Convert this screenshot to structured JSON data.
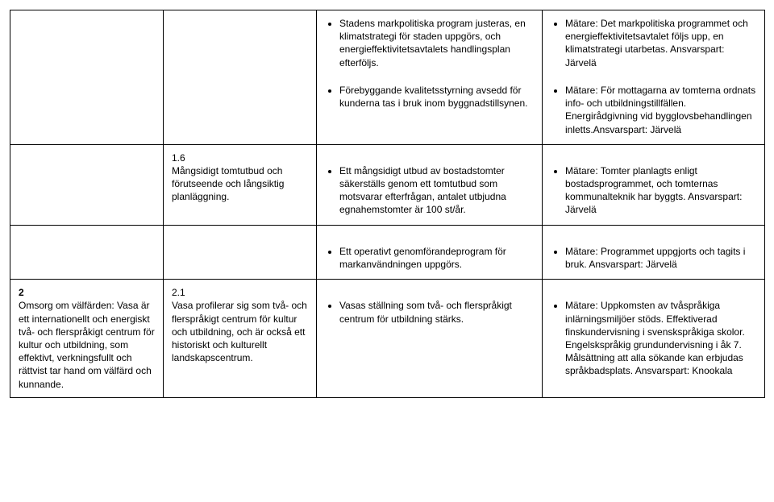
{
  "rows": [
    {
      "c1": "",
      "c2": "",
      "c3_items": [
        "Stadens markpolitiska program justeras, en klimatstrategi för staden uppgörs, och energieffektivitetsavtalets handlingsplan efterföljs.",
        "Förebyggande kvalitetsstyrning avsedd för kunderna tas i bruk inom byggnadstillsynen."
      ],
      "c4_items": [
        "Mätare: Det markpolitiska programmet och energieffektivitetsavtalet följs upp, en klimatstrategi utarbetas. Ansvarspart: Järvelä",
        "Mätare: För mottagarna av tomterna ordnats info- och utbildningstillfällen. Energirådgivning vid bygglovsbehandlingen inletts.Ansvarspart: Järvelä"
      ]
    },
    {
      "c1": "",
      "c2_num": "1.6",
      "c2_text": "Mångsidigt tomtutbud och förutseende och långsiktig planläggning.",
      "c3_items": [
        "Ett mångsidigt utbud av bostadstomter säkerställs genom ett tomtutbud som motsvarar efterfrågan, antalet utbjudna egnahemstomter är 100 st/år."
      ],
      "c4_items": [
        "Mätare: Tomter planlagts enligt bostadsprogrammet, och tomternas kommunalteknik har byggts. Ansvarspart: Järvelä"
      ]
    },
    {
      "c1": "",
      "c2": "",
      "c3_items": [
        "Ett operativt genomförandeprogram för markanvändningen uppgörs."
      ],
      "c4_items": [
        "Mätare: Programmet uppgjorts och tagits i bruk. Ansvarspart: Järvelä"
      ]
    },
    {
      "c1_num": "2",
      "c1_text": "Omsorg om välfärden: Vasa är ett internationellt och energiskt två- och flerspråkigt centrum för kultur och utbildning, som effektivt, verkningsfullt och rättvist tar hand om välfärd och kunnande.",
      "c2_num": "2.1",
      "c2_text": "Vasa profilerar sig som två- och flerspråkigt centrum för kultur och utbildning, och är också ett historiskt och kulturellt landskapscentrum.",
      "c3_items": [
        "Vasas ställning som två- och flerspråkigt centrum för utbildning stärks."
      ],
      "c4_items": [
        "Mätare: Uppkomsten av tvåspråkiga inlärningsmiljöer stöds. Effektiverad finskundervisning i svenskspråkiga skolor. Engelskspråkig grundundervisning i åk 7. Målsättning att alla sökande kan erbjudas språkbadsplats. Ansvarspart: Knookala"
      ]
    }
  ]
}
